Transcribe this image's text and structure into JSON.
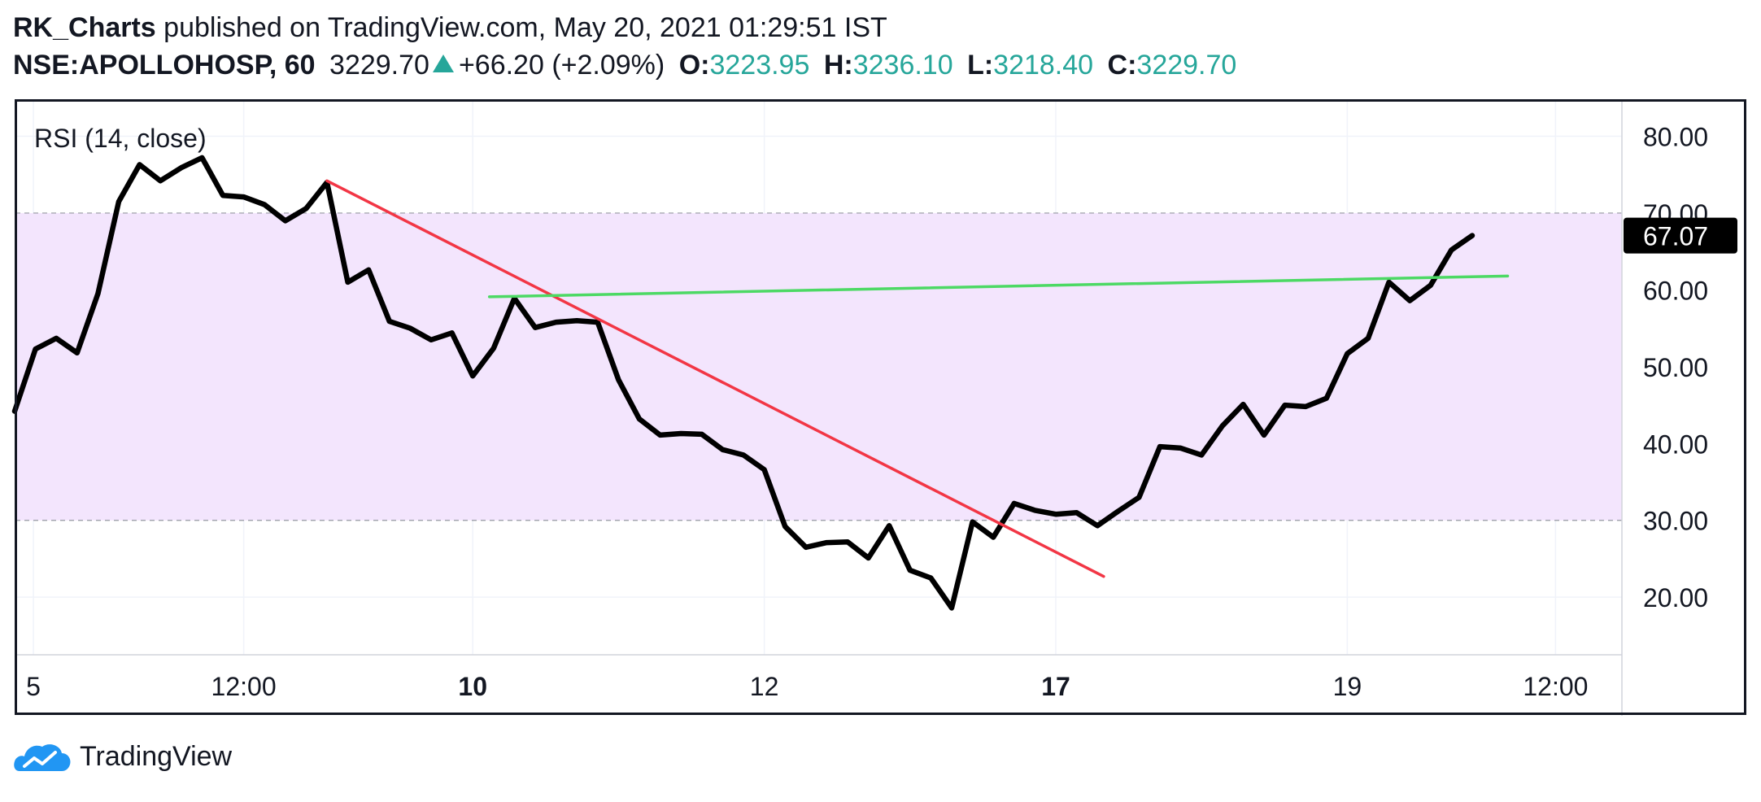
{
  "header": {
    "author": "RK_Charts",
    "published_text": "published on TradingView.com, May 20, 2021 01:29:51 IST",
    "symbol": "NSE:APOLLOHOSP, 60",
    "price": "3229.70",
    "change": "+66.20 (+2.09%)",
    "open_label": "O:",
    "open": "3223.95",
    "high_label": "H:",
    "high": "3236.10",
    "low_label": "L:",
    "low": "3218.40",
    "close_label": "C:",
    "close": "3229.70"
  },
  "footer": {
    "brand": "TradingView"
  },
  "colors": {
    "rsi_line": "#000000",
    "band_fill": "#f3e5fd",
    "downtrend_line": "#f23645",
    "horizontal_line": "#4cd964",
    "price_change": "#26a69a"
  },
  "chart_data": {
    "type": "line",
    "title": "RSI (14, close)",
    "ylim": [
      12.5,
      84.5
    ],
    "y_ticks": [
      "80.00",
      "70.00",
      "60.00",
      "50.00",
      "40.00",
      "30.00",
      "20.00"
    ],
    "y_tick_values": [
      80,
      70,
      60,
      50,
      40,
      30,
      20
    ],
    "x_ticks": [
      {
        "label": "5",
        "idx": 0.9,
        "bold": false
      },
      {
        "label": "12:00",
        "idx": 11,
        "bold": false
      },
      {
        "label": "10",
        "idx": 22,
        "bold": true
      },
      {
        "label": "12",
        "idx": 36,
        "bold": false
      },
      {
        "label": "17",
        "idx": 50,
        "bold": true
      },
      {
        "label": "19",
        "idx": 64,
        "bold": false
      },
      {
        "label": "12:00",
        "idx": 74,
        "bold": false
      }
    ],
    "band": {
      "upper": 70,
      "lower": 30
    },
    "last_value": "67.07",
    "series": [
      {
        "values": [
          44.2,
          52.3,
          53.7,
          51.8,
          59.5,
          71.5,
          76.3,
          74.2,
          75.9,
          77.2,
          72.3,
          72.1,
          71.1,
          69.0,
          70.6,
          74.0,
          61.0,
          62.6,
          55.9,
          55.0,
          53.5,
          54.4,
          48.8,
          52.4,
          58.9,
          55.1,
          55.8,
          56.0,
          55.8,
          48.3,
          43.2,
          41.1,
          41.3,
          41.2,
          39.2,
          38.5,
          36.6,
          29.2,
          26.5,
          27.1,
          27.2,
          25.1,
          29.3,
          23.5,
          22.5,
          18.6,
          29.8,
          27.8,
          32.2,
          31.3,
          30.8,
          31.0,
          29.3,
          31.2,
          33.0,
          39.6,
          39.4,
          38.5,
          42.3,
          45.1,
          41.1,
          45.0,
          44.8,
          45.9,
          51.7,
          53.7,
          61.0,
          58.6,
          60.6,
          65.2,
          67.07
        ]
      }
    ],
    "trendlines": [
      {
        "name": "downtrend",
        "x1": 15,
        "y1": 74.2,
        "x2": 52.3,
        "y2": 22.7
      },
      {
        "name": "horizontal",
        "x1": 22.8,
        "y1": 59.1,
        "x2": 71.7,
        "y2": 61.8
      }
    ]
  }
}
